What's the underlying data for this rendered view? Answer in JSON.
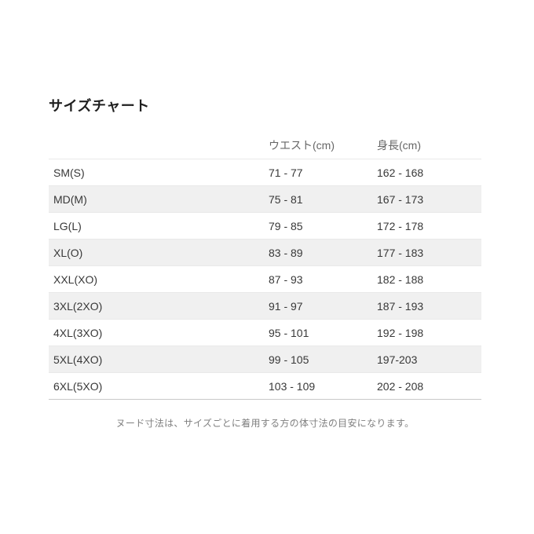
{
  "page": {
    "title": "サイズチャート",
    "footnote": "ヌード寸法は、サイズごとに着用する方の体寸法の目安になります。"
  },
  "size_chart": {
    "columns": {
      "size": "",
      "waist": "ウエスト(cm)",
      "height": "身長(cm)"
    },
    "rows": [
      {
        "size": "SM(S)",
        "waist": "71 - 77",
        "height": "162 - 168"
      },
      {
        "size": "MD(M)",
        "waist": "75 - 81",
        "height": "167 - 173"
      },
      {
        "size": "LG(L)",
        "waist": "79 - 85",
        "height": "172 - 178"
      },
      {
        "size": "XL(O)",
        "waist": "83 - 89",
        "height": "177 - 183"
      },
      {
        "size": "XXL(XO)",
        "waist": "87 - 93",
        "height": "182 - 188"
      },
      {
        "size": "3XL(2XO)",
        "waist": "91 - 97",
        "height": "187 - 193"
      },
      {
        "size": "4XL(3XO)",
        "waist": "95 - 101",
        "height": "192 - 198"
      },
      {
        "size": "5XL(4XO)",
        "waist": "99 - 105",
        "height": "197-203"
      },
      {
        "size": "6XL(5XO)",
        "waist": "103 - 109",
        "height": "202 - 208"
      }
    ]
  },
  "colors": {
    "row_alt_background": "#f0f0f0",
    "divider": "#e9e9e9",
    "table_bottom_border": "#c9c9c9",
    "header_text": "#666666",
    "body_text": "#383838",
    "footnote_text": "#808080"
  }
}
